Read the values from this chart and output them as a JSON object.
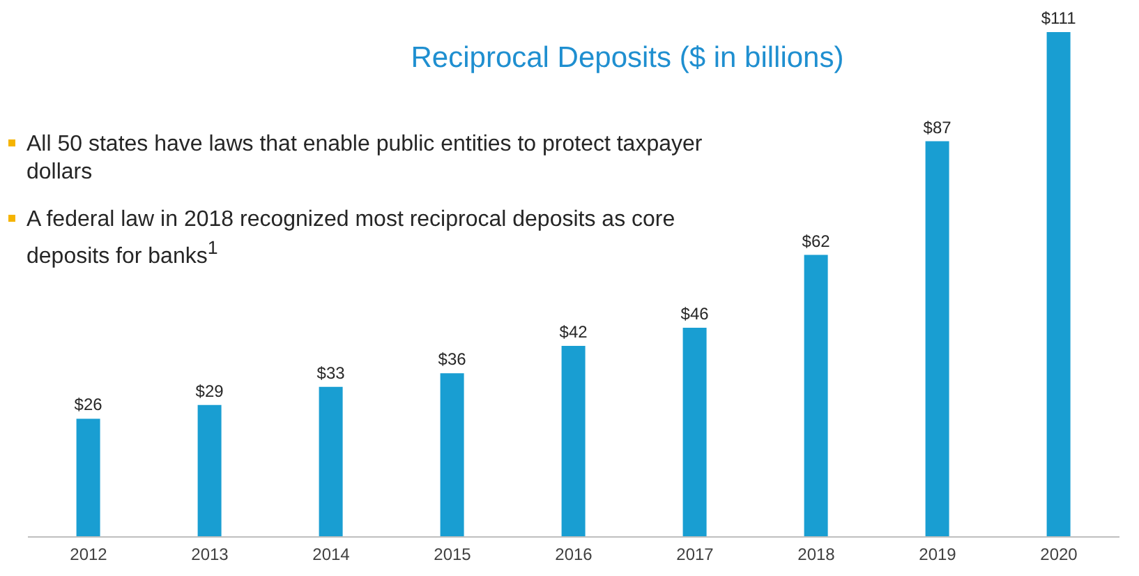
{
  "chart_data": {
    "type": "bar",
    "title": "Reciprocal Deposits ($ in billions)",
    "categories": [
      "2012",
      "2013",
      "2014",
      "2015",
      "2016",
      "2017",
      "2018",
      "2019",
      "2020"
    ],
    "values": [
      26,
      29,
      33,
      36,
      42,
      46,
      62,
      87,
      111
    ],
    "value_labels": [
      "$26",
      "$29",
      "$33",
      "$36",
      "$42",
      "$46",
      "$62",
      "$87",
      "$111"
    ],
    "color": "#199ed2",
    "annotations": [
      "All 50 states have laws that enable public entities to protect taxpayer dollars",
      "A federal law in 2018 recognized most reciprocal deposits as core deposits for banks$^{1}$"
    ],
    "grid": false,
    "legend": false
  }
}
